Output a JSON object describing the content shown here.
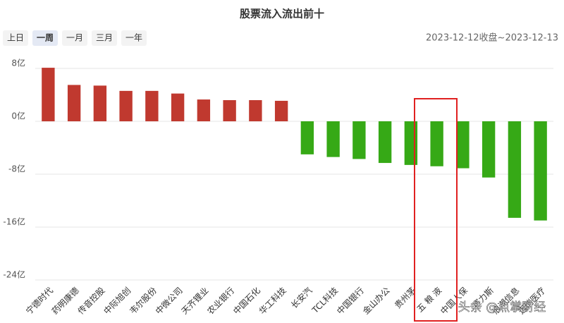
{
  "chart_data": {
    "type": "bar",
    "title": "股票流入流出前十",
    "categories": [
      "宁德时代",
      "药明康德",
      "传音控股",
      "中际旭创",
      "韦尔股份",
      "中微公司",
      "天齐锂业",
      "农业银行",
      "中国石化",
      "华工科技",
      "长安汽",
      "TCL科技",
      "中国银行",
      "金山办公",
      "贵州茅",
      "五 粮 液",
      "中国人保",
      "赛力斯",
      "浪潮信息",
      "迈瑞医疗"
    ],
    "values": [
      8.1,
      5.5,
      5.4,
      4.6,
      4.6,
      4.2,
      3.3,
      3.2,
      3.2,
      3.1,
      -5.0,
      -5.4,
      -5.7,
      -6.3,
      -6.6,
      -6.8,
      -7.1,
      -8.5,
      -14.6,
      -15.0
    ],
    "positive_color": "#c0392f",
    "negative_color": "#36a916",
    "ylim": [
      -24,
      8
    ],
    "yticks": [
      {
        "value": 8,
        "label": "8亿"
      },
      {
        "value": 0,
        "label": "0亿"
      },
      {
        "value": -8,
        "label": "-8亿"
      },
      {
        "value": -16,
        "label": "-16亿"
      },
      {
        "value": -24,
        "label": "-24亿"
      }
    ],
    "grid": true
  },
  "ranges": [
    "上日",
    "一周",
    "一月",
    "三月",
    "一年"
  ],
  "active_range": 1,
  "date_range": "2023-12-12收盘~2023-12-13",
  "watermark": "头条 @点掌财经"
}
